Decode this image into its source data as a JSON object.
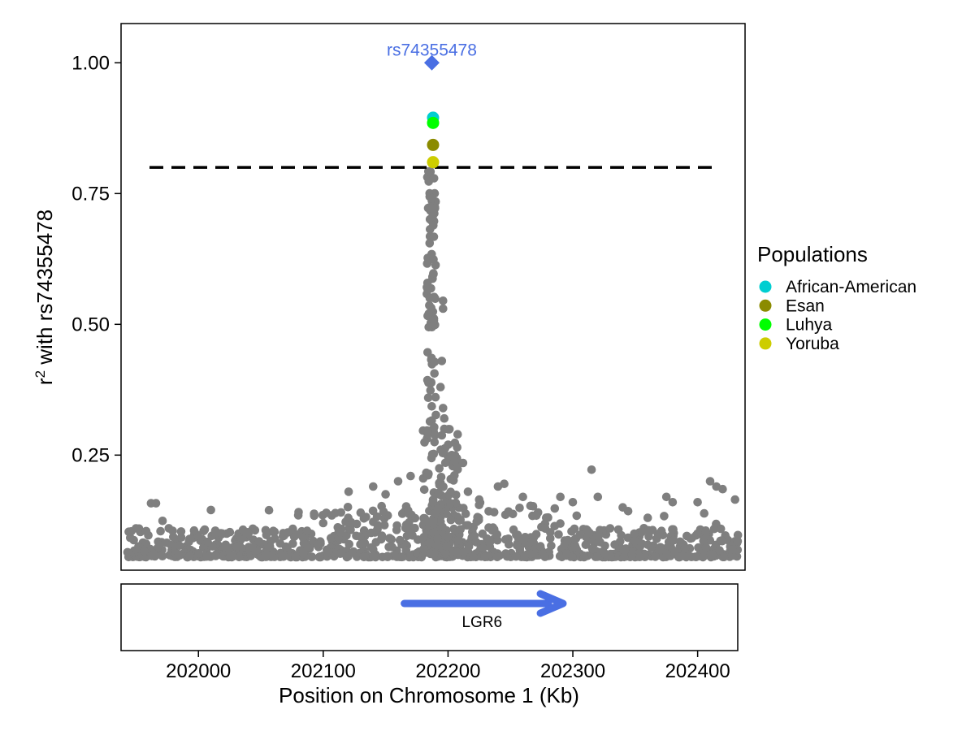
{
  "chart_data": {
    "type": "scatter",
    "title": "",
    "xlabel": "Position on Chromosome 1 (Kb)",
    "ylabel_prefix": "r",
    "ylabel_sup": "2",
    "ylabel_suffix": " with rs74355478",
    "xlim": [
      201938,
      202438
    ],
    "ylim": [
      0.03,
      1.075
    ],
    "x_ticks": [
      202000,
      202100,
      202200,
      202300,
      202400
    ],
    "x_tick_labels": [
      "202000",
      "202100",
      "202200",
      "202300",
      "202400"
    ],
    "y_ticks": [
      0.25,
      0.5,
      0.75,
      1.0
    ],
    "y_tick_labels": [
      "0.25",
      "0.50",
      "0.75",
      "1.00"
    ],
    "threshold": 0.8,
    "grid": false,
    "lead_snp": {
      "label": "rs74355478",
      "x": 202187,
      "y": 1.0,
      "color": "#4A6FE3"
    },
    "highlighted": [
      {
        "population": "African-American",
        "x": 202188,
        "y": 0.895
      },
      {
        "population": "Luhya",
        "x": 202188,
        "y": 0.885
      },
      {
        "population": "Esan",
        "x": 202188,
        "y": 0.843
      },
      {
        "population": "Yoruba",
        "x": 202188,
        "y": 0.81
      }
    ],
    "background_color": "#7F7F7F",
    "legend": {
      "title": "Populations",
      "placement": "right",
      "items": [
        {
          "label": "African-American",
          "color": "#00CED1"
        },
        {
          "label": "Esan",
          "color": "#8B8B00"
        },
        {
          "label": "Luhya",
          "color": "#00FF00"
        },
        {
          "label": "Yoruba",
          "color": "#CDCD00"
        }
      ]
    },
    "gene_track": {
      "genes": [
        {
          "name": "LGR6",
          "start": 202163,
          "end": 202300,
          "strand": "+",
          "color": "#4A6FE3"
        }
      ]
    }
  }
}
